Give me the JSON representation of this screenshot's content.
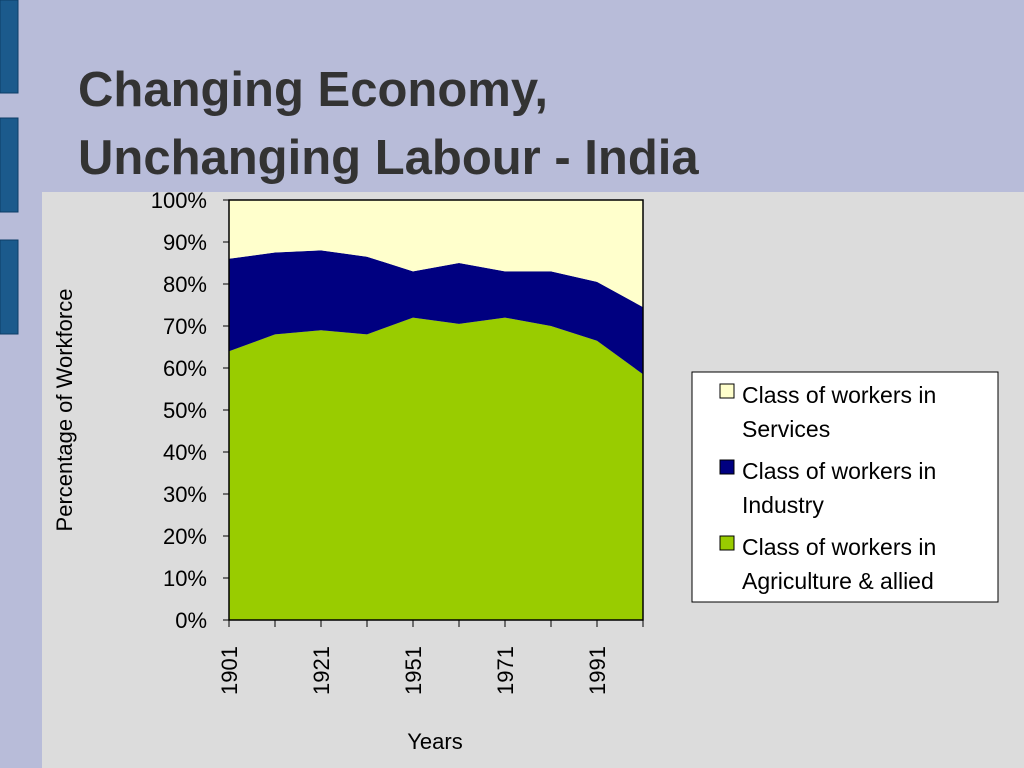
{
  "slide": {
    "title": [
      "Changing Economy,",
      "Unchanging Labour - India"
    ]
  },
  "chart_data": {
    "type": "area",
    "stacked": true,
    "categories": [
      "1901",
      null,
      "1921",
      null,
      "1951",
      null,
      "1971",
      null,
      "1991",
      null
    ],
    "series": [
      {
        "name": "Class of workers in Agriculture & allied",
        "color": "#99cc00",
        "values": [
          64,
          68,
          69,
          68,
          72,
          70.5,
          72,
          70,
          66.5,
          58.5
        ]
      },
      {
        "name": "Class of workers in Industry",
        "color": "#000080",
        "values": [
          22,
          19.5,
          19,
          18.5,
          11,
          14.5,
          11,
          13,
          14,
          16
        ]
      },
      {
        "name": "Class of workers in Services",
        "color": "#ffffcc",
        "values": [
          14,
          12.5,
          12,
          13.5,
          17,
          15,
          17,
          17,
          19.5,
          25.5
        ]
      }
    ],
    "ylim": [
      0,
      100
    ],
    "yticks": [
      {
        "value": 0,
        "label": "0%"
      },
      {
        "value": 10,
        "label": "10%"
      },
      {
        "value": 20,
        "label": "20%"
      },
      {
        "value": 30,
        "label": "30%"
      },
      {
        "value": 40,
        "label": "40%"
      },
      {
        "value": 50,
        "label": "50%"
      },
      {
        "value": 60,
        "label": "60%"
      },
      {
        "value": 70,
        "label": "70%"
      },
      {
        "value": 80,
        "label": "80%"
      },
      {
        "value": 90,
        "label": "90%"
      },
      {
        "value": 100,
        "label": "100%"
      }
    ],
    "ylabel": "Percentage of Workforce",
    "xlabel": "Years",
    "legend": "right"
  }
}
